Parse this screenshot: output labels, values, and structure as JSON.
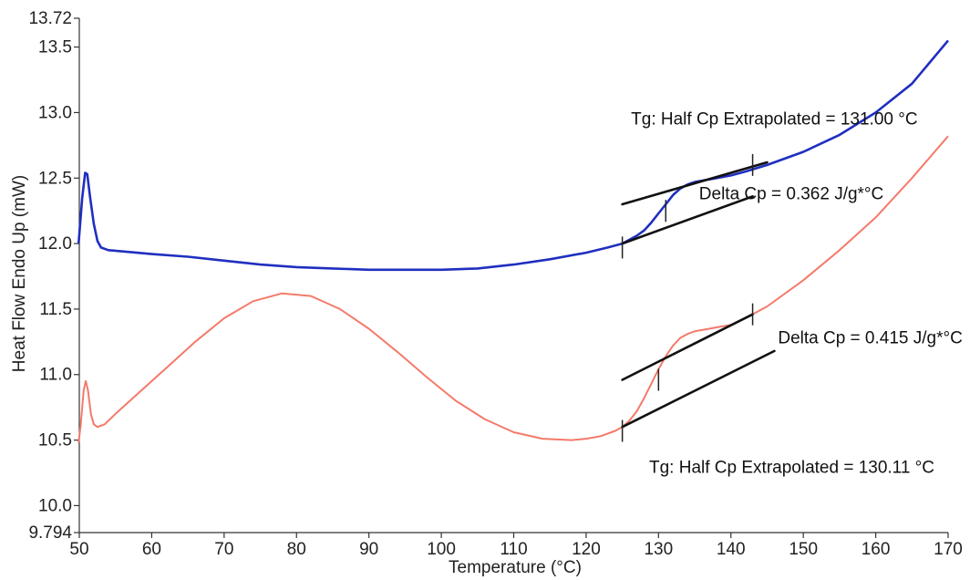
{
  "chart_data": {
    "type": "line",
    "xlabel": "Temperature (°C)",
    "ylabel": "Heat Flow Endo Up (mW)",
    "xlim": [
      50,
      170
    ],
    "ylim": [
      9.794,
      13.72
    ],
    "x_ticks": [
      "50",
      "60",
      "70",
      "80",
      "90",
      "100",
      "110",
      "120",
      "130",
      "140",
      "150",
      "160",
      "170"
    ],
    "y_ticks": [
      "9.794",
      "10.0",
      "10.5",
      "11.0",
      "11.5",
      "12.0",
      "12.5",
      "13.0",
      "13.5",
      "13.72"
    ],
    "grid": false,
    "series": [
      {
        "color": "#1f2fc0",
        "x": [
          49.9,
          50.4,
          50.8,
          51.1,
          51.5,
          52.0,
          52.5,
          53.0,
          54.0,
          56,
          60,
          65,
          70,
          75,
          80,
          85,
          90,
          95,
          100,
          105,
          110,
          115,
          120,
          123,
          125,
          126,
          127,
          128,
          129,
          130,
          131,
          132,
          133,
          134,
          135,
          136,
          137,
          138,
          139,
          140,
          142,
          145,
          150,
          155,
          160,
          165,
          170
        ],
        "values": [
          12.0,
          12.35,
          12.54,
          12.53,
          12.35,
          12.15,
          12.02,
          11.97,
          11.95,
          11.94,
          11.92,
          11.9,
          11.87,
          11.84,
          11.82,
          11.81,
          11.8,
          11.8,
          11.8,
          11.81,
          11.84,
          11.88,
          11.93,
          11.97,
          12.0,
          12.03,
          12.06,
          12.1,
          12.16,
          12.23,
          12.3,
          12.37,
          12.42,
          12.45,
          12.47,
          12.48,
          12.49,
          12.5,
          12.51,
          12.52,
          12.55,
          12.6,
          12.7,
          12.83,
          13.0,
          13.22,
          13.55
        ]
      },
      {
        "color": "#f47a6a",
        "x": [
          49.9,
          50.2,
          50.6,
          50.9,
          51.2,
          51.6,
          52.0,
          52.5,
          53.5,
          55,
          58,
          62,
          66,
          70,
          74,
          78,
          82,
          86,
          90,
          94,
          98,
          102,
          106,
          110,
          114,
          118,
          120,
          122,
          124,
          125,
          126,
          127,
          128,
          129,
          130,
          131,
          132,
          133,
          134,
          135,
          136,
          137,
          138,
          140,
          142,
          145,
          150,
          155,
          160,
          165,
          170
        ],
        "values": [
          10.48,
          10.62,
          10.88,
          10.95,
          10.88,
          10.7,
          10.62,
          10.6,
          10.62,
          10.7,
          10.85,
          11.05,
          11.25,
          11.43,
          11.56,
          11.62,
          11.6,
          11.5,
          11.35,
          11.17,
          10.98,
          10.8,
          10.66,
          10.56,
          10.51,
          10.5,
          10.51,
          10.53,
          10.57,
          10.6,
          10.65,
          10.72,
          10.82,
          10.93,
          11.04,
          11.14,
          11.22,
          11.28,
          11.31,
          11.33,
          11.34,
          11.35,
          11.36,
          11.38,
          11.43,
          11.52,
          11.72,
          11.95,
          12.2,
          12.5,
          12.82
        ]
      }
    ],
    "annotations": [
      {
        "label": "Tg: Half Cp Extrapolated = 131.00 °C",
        "x": 126.2,
        "y": 12.95,
        "anchor": "start"
      },
      {
        "label": "Delta Cp = 0.362 J/g*°C",
        "x": 135.6,
        "y": 12.38,
        "anchor": "start"
      },
      {
        "label": "Delta Cp = 0.415 J/g*°C",
        "x": 146.5,
        "y": 11.28,
        "anchor": "start"
      },
      {
        "label": "Tg: Half Cp Extrapolated = 130.11 °C",
        "x": 128.7,
        "y": 10.29,
        "anchor": "start"
      }
    ],
    "tangent_lines": [
      {
        "x": [
          125,
          145
        ],
        "y": [
          12.3,
          12.62
        ]
      },
      {
        "x": [
          125,
          143
        ],
        "y": [
          12.0,
          12.36
        ]
      },
      {
        "x": [
          125,
          143
        ],
        "y": [
          10.96,
          11.46
        ]
      },
      {
        "x": [
          125,
          146
        ],
        "y": [
          10.6,
          11.18
        ]
      }
    ],
    "markers": [
      {
        "x": 125,
        "y": 11.97
      },
      {
        "x": 131,
        "y": 12.25
      },
      {
        "x": 143,
        "y": 12.6
      },
      {
        "x": 125,
        "y": 10.57
      },
      {
        "x": 130,
        "y": 10.96
      },
      {
        "x": 143,
        "y": 11.46
      }
    ]
  }
}
